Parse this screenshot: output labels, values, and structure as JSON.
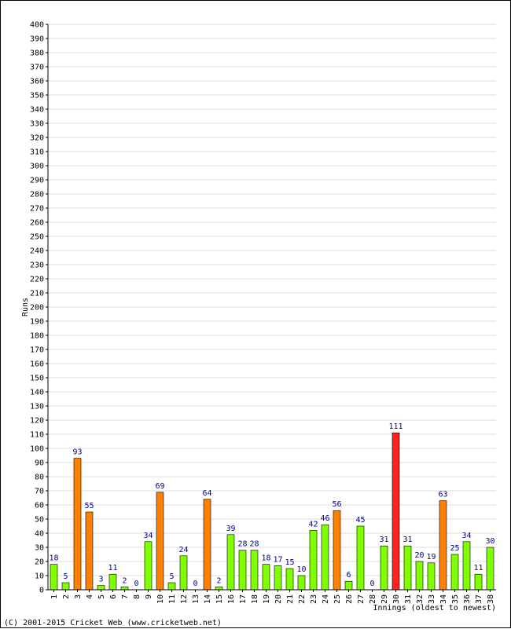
{
  "chart_data": {
    "type": "bar",
    "ylabel": "Runs",
    "xlabel": "Innings (oldest to newest)",
    "ylim": [
      0,
      400
    ],
    "ytick_step": 10,
    "grid": true,
    "categories": [
      "1",
      "2",
      "3",
      "4",
      "5",
      "6",
      "7",
      "8",
      "9",
      "10",
      "11",
      "12",
      "13",
      "14",
      "15",
      "16",
      "17",
      "18",
      "19",
      "20",
      "21",
      "22",
      "23",
      "24",
      "25",
      "26",
      "27",
      "28",
      "29",
      "30",
      "31",
      "32",
      "33",
      "34",
      "35",
      "36",
      "37",
      "38"
    ],
    "values": [
      18,
      5,
      93,
      55,
      3,
      11,
      2,
      0,
      34,
      69,
      5,
      24,
      0,
      64,
      2,
      39,
      28,
      28,
      18,
      17,
      15,
      10,
      42,
      46,
      56,
      6,
      45,
      0,
      31,
      111,
      31,
      20,
      19,
      63,
      25,
      34,
      11,
      30
    ],
    "colors": {
      "normal": "#80ff00",
      "fifty": "#ff8000",
      "hundred": "#ff2020",
      "label": "#000080"
    }
  },
  "footer": {
    "credit": "(C) 2001-2015 Cricket Web (www.cricketweb.net)"
  }
}
